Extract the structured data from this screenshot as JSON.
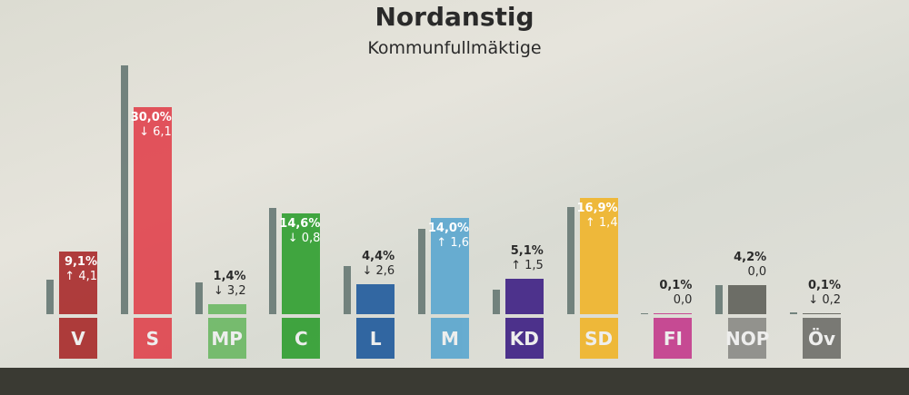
{
  "chart_data": {
    "type": "bar",
    "title": "Nordanstig",
    "subtitle": "Kommunfullmäktige",
    "categories": [
      "V",
      "S",
      "MP",
      "C",
      "L",
      "M",
      "KD",
      "SD",
      "FI",
      "NOP",
      "Öv"
    ],
    "values": [
      9.1,
      30.0,
      1.4,
      14.6,
      4.4,
      14.0,
      5.1,
      16.9,
      0.1,
      4.2,
      0.1
    ],
    "value_labels": [
      "9,1%",
      "30,0%",
      "1,4%",
      "14,6%",
      "4,4%",
      "14,0%",
      "5,1%",
      "16,9%",
      "0,1%",
      "4,2%",
      "0,1%"
    ],
    "change": [
      4.1,
      -6.1,
      -3.2,
      -0.8,
      -2.6,
      1.6,
      1.5,
      1.4,
      0.0,
      0.0,
      -0.2
    ],
    "change_labels": [
      "4,1",
      "6,1",
      "3,2",
      "0,8",
      "2,6",
      "1,6",
      "1,5",
      "1,4",
      "0,0",
      "0,0",
      "0,2"
    ],
    "previous_values": [
      5.0,
      36.1,
      4.6,
      15.4,
      7.0,
      12.4,
      3.6,
      15.5,
      0.1,
      4.2,
      0.3
    ],
    "colors": [
      "#a82a2a",
      "#e0434d",
      "#6cb864",
      "#2f9e2f",
      "#1f5a9c",
      "#5aa6cf",
      "#3d1f84",
      "#f0b429",
      "#c43b8c",
      "#5f605a",
      "#5f605a"
    ],
    "box_colors": [
      "#a82a2a",
      "#e0434d",
      "#6cb864",
      "#2f9e2f",
      "#1f5a9c",
      "#5aa6cf",
      "#3d1f84",
      "#f0b429",
      "#c43b8c",
      "#8a8a86",
      "#6e6e6a"
    ],
    "unit": "%"
  }
}
